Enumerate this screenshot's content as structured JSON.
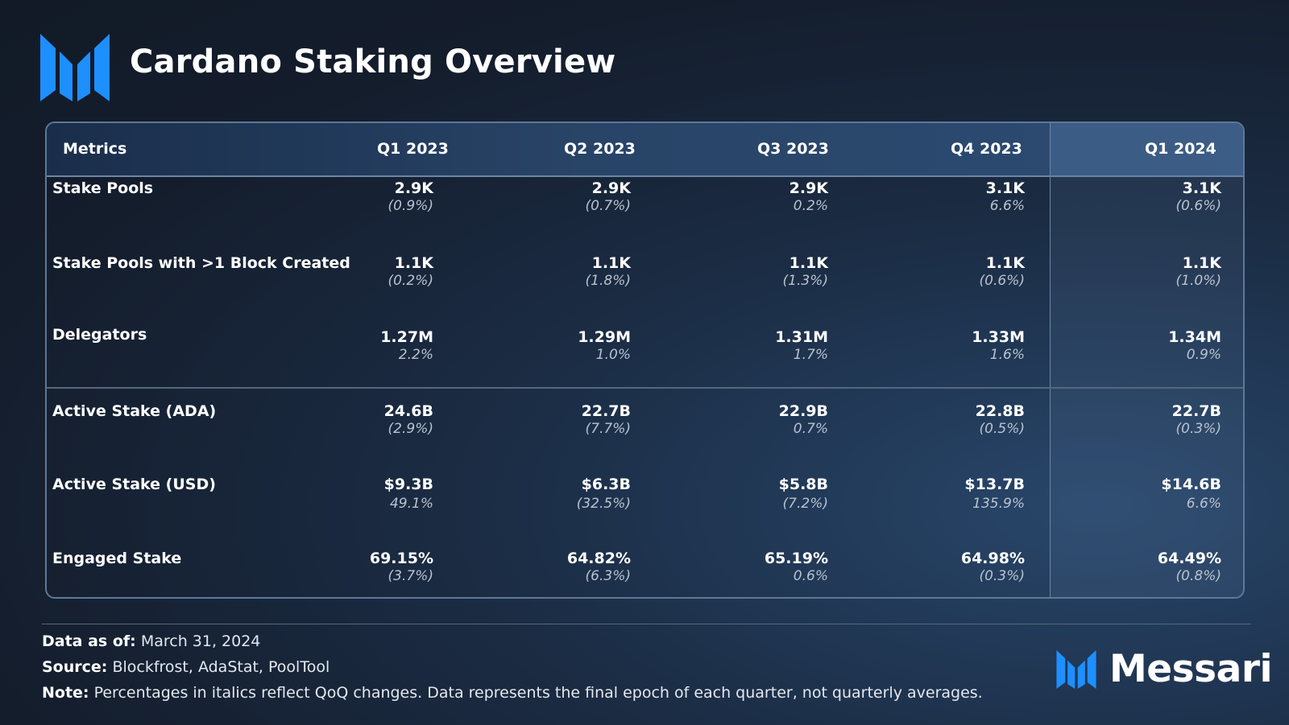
{
  "title": "Cardano Staking Overview",
  "colors": {
    "accent": "#1e8fff",
    "header_bg": "#284467",
    "border": "#5d7898"
  },
  "chart_data": {
    "type": "table",
    "title": "Cardano Staking Overview",
    "columns": [
      "Metrics",
      "Q1 2023",
      "Q2 2023",
      "Q3 2023",
      "Q4 2023",
      "Q1 2024"
    ],
    "rows": [
      {
        "metric": "Stake Pools",
        "values": [
          "2.9K",
          "2.9K",
          "2.9K",
          "3.1K",
          "3.1K"
        ],
        "changes": [
          "(0.9%)",
          "(0.7%)",
          "0.2%",
          "6.6%",
          "(0.6%)"
        ]
      },
      {
        "metric": "Stake Pools with >1 Block Created",
        "values": [
          "1.1K",
          "1.1K",
          "1.1K",
          "1.1K",
          "1.1K"
        ],
        "changes": [
          "(0.2%)",
          "(1.8%)",
          "(1.3%)",
          "(0.6%)",
          "(1.0%)"
        ]
      },
      {
        "metric": "Delegators",
        "values": [
          "1.27M",
          "1.29M",
          "1.31M",
          "1.33M",
          "1.34M"
        ],
        "changes": [
          "2.2%",
          "1.0%",
          "1.7%",
          "1.6%",
          "0.9%"
        ]
      },
      {
        "metric": "Active Stake (ADA)",
        "values": [
          "24.6B",
          "22.7B",
          "22.9B",
          "22.8B",
          "22.7B"
        ],
        "changes": [
          "(2.9%)",
          "(7.7%)",
          "0.7%",
          "(0.5%)",
          "(0.3%)"
        ]
      },
      {
        "metric": "Active Stake (USD)",
        "values": [
          "$9.3B",
          "$6.3B",
          "$5.8B",
          "$13.7B",
          "$14.6B"
        ],
        "changes": [
          "49.1%",
          "(32.5%)",
          "(7.2%)",
          "135.9%",
          "6.6%"
        ]
      },
      {
        "metric": "Engaged Stake",
        "values": [
          "69.15%",
          "64.82%",
          "65.19%",
          "64.98%",
          "64.49%"
        ],
        "changes": [
          "(3.7%)",
          "(6.3%)",
          "0.6%",
          "(0.3%)",
          "(0.8%)"
        ]
      }
    ]
  },
  "footer": {
    "data_as_of_label": "Data as of:",
    "data_as_of_value": "March 31, 2024",
    "source_label": "Source:",
    "source_value": "Blockfrost, AdaStat, PoolTool",
    "note_label": "Note:",
    "note_value": "Percentages in italics reflect QoQ changes. Data represents the final epoch of each quarter, not quarterly averages."
  },
  "brand": {
    "name": "Messari",
    "logo_icon": "messari-logo-icon"
  }
}
